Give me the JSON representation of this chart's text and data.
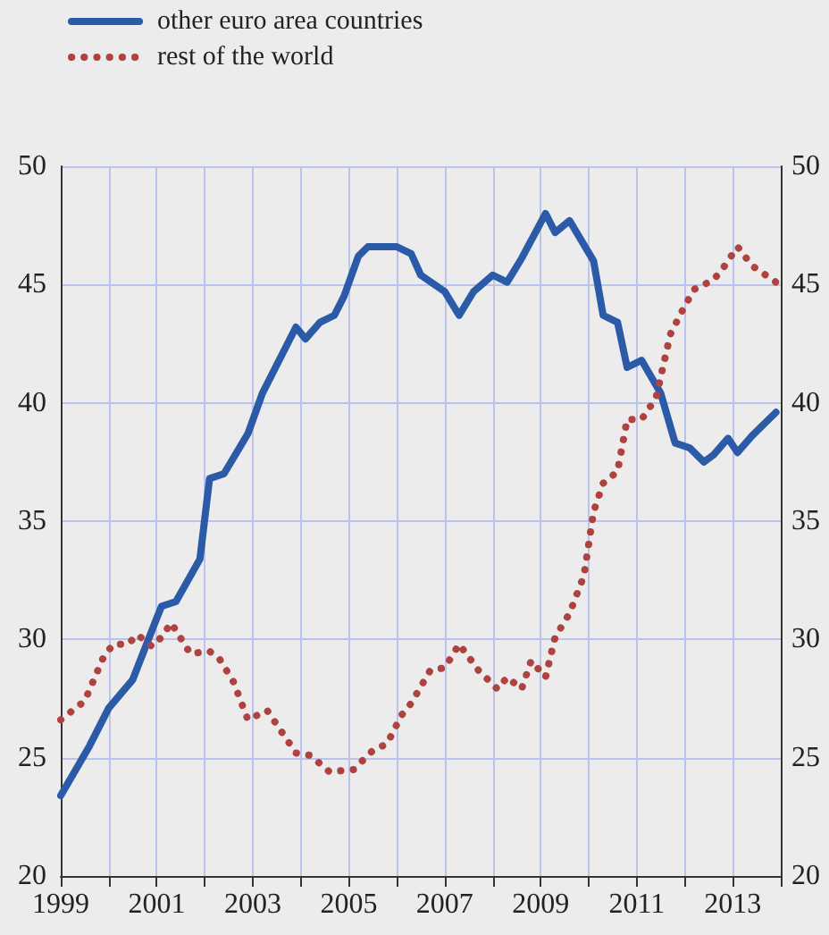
{
  "chart_data": {
    "type": "line",
    "legend": "top left",
    "grid": true,
    "xlim": [
      1999,
      2014
    ],
    "xticks": [
      1999,
      {
        "value": 2000,
        "label": null
      },
      2001,
      {
        "value": 2002,
        "label": null
      },
      2003,
      {
        "value": 2004,
        "label": null
      },
      2005,
      {
        "value": 2006,
        "label": null
      },
      2007,
      {
        "value": 2008,
        "label": null
      },
      2009,
      {
        "value": 2010,
        "label": null
      },
      2011,
      {
        "value": 2012,
        "label": null
      },
      2013,
      {
        "value": 2014,
        "label": null
      }
    ],
    "ylim": [
      20,
      50
    ],
    "yticks": [
      20,
      25,
      30,
      35,
      40,
      45,
      50
    ],
    "y2lim": [
      20,
      50
    ],
    "y2ticks": [
      20,
      25,
      30,
      35,
      40,
      45,
      50
    ],
    "series": [
      {
        "name": "other euro area countries",
        "color": "#2a5aa8",
        "line_style": "solid",
        "x": [
          1999.0,
          1999.6,
          2000.0,
          2000.5,
          2001.0,
          2001.1,
          2001.4,
          2001.9,
          2002.1,
          2002.4,
          2002.9,
          2003.2,
          2003.4,
          2003.9,
          2004.1,
          2004.4,
          2004.7,
          2004.9,
          2005.2,
          2005.4,
          2006.0,
          2006.3,
          2006.5,
          2007.0,
          2007.3,
          2007.6,
          2008.0,
          2008.3,
          2008.6,
          2009.1,
          2009.3,
          2009.6,
          2010.1,
          2010.3,
          2010.6,
          2010.8,
          2011.1,
          2011.5,
          2011.8,
          2012.1,
          2012.4,
          2012.6,
          2012.9,
          2013.1,
          2013.4,
          2013.9
        ],
        "values": [
          23.4,
          25.5,
          27.1,
          28.3,
          30.9,
          31.4,
          31.6,
          33.4,
          36.8,
          37.0,
          38.7,
          40.4,
          41.2,
          43.2,
          42.7,
          43.4,
          43.7,
          44.5,
          46.2,
          46.6,
          46.6,
          46.3,
          45.4,
          44.7,
          43.7,
          44.7,
          45.4,
          45.1,
          46.1,
          48.0,
          47.2,
          47.7,
          46.0,
          43.7,
          43.4,
          41.5,
          41.8,
          40.4,
          38.3,
          38.1,
          37.5,
          37.8,
          38.5,
          37.9,
          38.6,
          39.6
        ]
      },
      {
        "name": "rest of the world",
        "color": "#b0413e",
        "line_style": "dotted",
        "x": [
          1999.0,
          1999.5,
          1999.9,
          2000.1,
          2000.4,
          2000.6,
          2000.9,
          2001.1,
          2001.3,
          2001.7,
          2002.1,
          2002.3,
          2002.6,
          2002.9,
          2003.3,
          2003.9,
          2004.2,
          2004.6,
          2005.1,
          2005.5,
          2005.8,
          2006.1,
          2006.3,
          2006.7,
          2007.0,
          2007.3,
          2007.7,
          2008.1,
          2008.3,
          2008.6,
          2008.8,
          2009.1,
          2009.3,
          2009.6,
          2009.9,
          2010.1,
          2010.3,
          2010.6,
          2010.8,
          2011.1,
          2011.4,
          2011.7,
          2012.0,
          2012.2,
          2012.6,
          2012.8,
          2013.1,
          2013.4,
          2013.9
        ],
        "values": [
          26.6,
          27.4,
          29.3,
          29.8,
          29.8,
          30.2,
          29.7,
          30.1,
          30.7,
          29.4,
          29.5,
          29.2,
          28.2,
          26.6,
          27.0,
          25.2,
          25.1,
          24.4,
          24.5,
          25.3,
          25.6,
          26.8,
          27.3,
          28.7,
          28.8,
          29.8,
          28.7,
          27.9,
          28.4,
          27.9,
          29.1,
          28.4,
          30.1,
          31.1,
          32.7,
          35.4,
          36.6,
          37.1,
          39.3,
          39.3,
          40.2,
          42.9,
          44.1,
          44.8,
          45.2,
          45.7,
          46.6,
          45.8,
          45.1
        ]
      }
    ]
  }
}
